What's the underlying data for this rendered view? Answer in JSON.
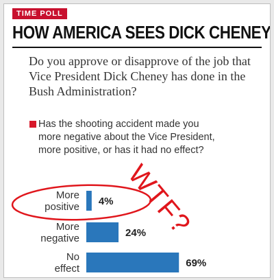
{
  "badge": "TIME POLL",
  "title": "HOW AMERICA SEES DICK CHENEY",
  "question": "Do you approve or disapprove of the job that Vice President Dick Cheney has done in the Bush Administration?",
  "sub_question": "Has the shooting accident made you more negative about the Vice President, more positive, or has it had no effect?",
  "annotation": "WTF?",
  "colors": {
    "badge": "#c8102e",
    "bar": "#2a77bb",
    "annotation": "#e0161c"
  },
  "chart_data": {
    "type": "bar",
    "orientation": "horizontal",
    "categories": [
      [
        "More",
        "positive"
      ],
      [
        "More",
        "negative"
      ],
      [
        "No",
        "effect"
      ]
    ],
    "values": [
      4,
      24,
      69
    ],
    "data_labels": [
      "4%",
      "24%",
      "69%"
    ],
    "xlim": [
      0,
      100
    ],
    "grid": false,
    "legend": "none"
  }
}
